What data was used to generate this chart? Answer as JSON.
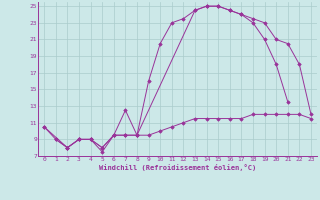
{
  "xlabel": "Windchill (Refroidissement éolien,°C)",
  "line_color": "#993399",
  "bg_color": "#cce8e8",
  "grid_color": "#aacccc",
  "xlim": [
    -0.5,
    23.5
  ],
  "ylim": [
    7,
    25.5
  ],
  "xticks": [
    0,
    1,
    2,
    3,
    4,
    5,
    6,
    7,
    8,
    9,
    10,
    11,
    12,
    13,
    14,
    15,
    16,
    17,
    18,
    19,
    20,
    21,
    22,
    23
  ],
  "yticks": [
    7,
    9,
    11,
    13,
    15,
    17,
    19,
    21,
    23,
    25
  ],
  "curve1_x": [
    0,
    1,
    2,
    3,
    4,
    5,
    6,
    7,
    8,
    9,
    10,
    11,
    12,
    13,
    14,
    15,
    16,
    17,
    18,
    19,
    20,
    21
  ],
  "curve1_y": [
    10.5,
    9.0,
    8.0,
    9.0,
    9.0,
    7.5,
    9.5,
    12.5,
    9.5,
    16.0,
    20.5,
    23.0,
    23.5,
    24.5,
    25.0,
    25.0,
    24.5,
    24.0,
    23.0,
    21.0,
    18.0,
    13.5
  ],
  "curve2_x": [
    1,
    2,
    3,
    4,
    5,
    6,
    7,
    8,
    13,
    14,
    15,
    16,
    17,
    18,
    19,
    20,
    21,
    22,
    23
  ],
  "curve2_y": [
    9.0,
    8.0,
    9.0,
    9.0,
    8.0,
    9.5,
    9.5,
    9.5,
    24.5,
    25.0,
    25.0,
    24.5,
    24.0,
    23.5,
    23.0,
    21.0,
    20.5,
    18.0,
    12.0
  ],
  "curve3_x": [
    0,
    2,
    3,
    4,
    5,
    6,
    7,
    8,
    9,
    10,
    11,
    12,
    13,
    14,
    15,
    16,
    17,
    18,
    19,
    20,
    21,
    22,
    23
  ],
  "curve3_y": [
    10.5,
    8.0,
    9.0,
    9.0,
    8.0,
    9.5,
    9.5,
    9.5,
    9.5,
    10.0,
    10.5,
    11.0,
    11.5,
    11.5,
    11.5,
    11.5,
    11.5,
    12.0,
    12.0,
    12.0,
    12.0,
    12.0,
    11.5
  ]
}
